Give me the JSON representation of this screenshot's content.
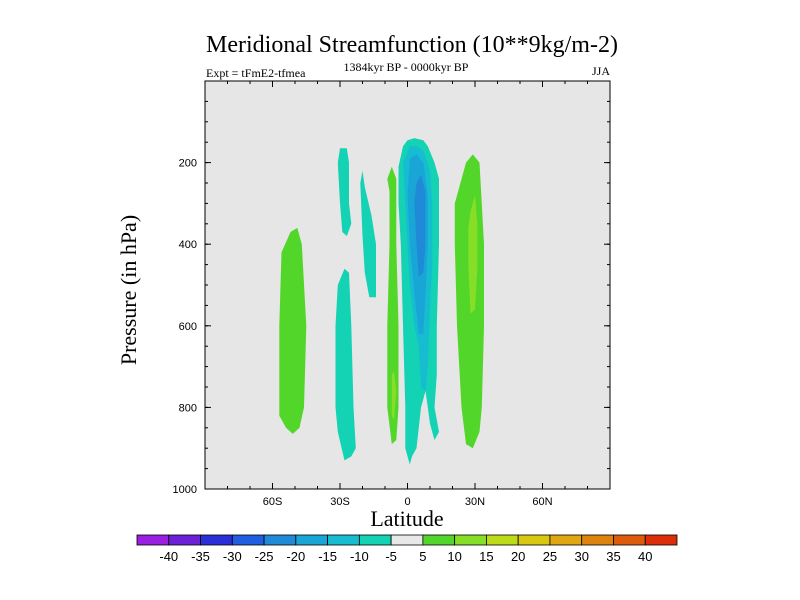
{
  "chart_data": {
    "type": "contour",
    "title": "Meridional Streamfunction (10**9kg/m-2)",
    "left_label": "Expt = tFmE2-tfmea",
    "center_label": "1384kyr BP - 0000kyr BP",
    "right_label": "JJA",
    "xlabel": "Latitude",
    "ylabel": "Pressure (in hPa)",
    "xlim": [
      -90,
      90
    ],
    "ylim": [
      1000,
      0
    ],
    "x_ticks": [
      {
        "value": -60,
        "label": "60S"
      },
      {
        "value": -30,
        "label": "30S"
      },
      {
        "value": 0,
        "label": "0"
      },
      {
        "value": 30,
        "label": "30N"
      },
      {
        "value": 60,
        "label": "60N"
      }
    ],
    "y_ticks": [
      {
        "value": 200,
        "label": "200"
      },
      {
        "value": 400,
        "label": "400"
      },
      {
        "value": 600,
        "label": "600"
      },
      {
        "value": 800,
        "label": "800"
      },
      {
        "value": 1000,
        "label": "1000"
      }
    ],
    "background_color": "#e6e6e6",
    "colorbar": {
      "levels": [
        "-40",
        "-35",
        "-30",
        "-25",
        "-20",
        "-15",
        "-10",
        "-5",
        "5",
        "10",
        "15",
        "20",
        "25",
        "30",
        "35",
        "40"
      ],
      "colors": [
        "#9a1fe0",
        "#6c21d8",
        "#2b2fd8",
        "#1f5ee0",
        "#1f8ad8",
        "#19a6d6",
        "#16bdd0",
        "#14d2b4",
        "#e8e8e8",
        "#52d62a",
        "#86de26",
        "#bedb19",
        "#d8c910",
        "#dfa810",
        "#de840e",
        "#dd5c0c",
        "#dc2e0a"
      ]
    },
    "regions": [
      {
        "name": "sh-outer-positive",
        "level": "5 to 10",
        "color": "#52d62a",
        "polygon": [
          [
            -54,
            850
          ],
          [
            -57,
            820
          ],
          [
            -57,
            600
          ],
          [
            -56,
            420
          ],
          [
            -52,
            370
          ],
          [
            -49,
            360
          ],
          [
            -47,
            400
          ],
          [
            -45,
            600
          ],
          [
            -46,
            800
          ],
          [
            -48,
            850
          ],
          [
            -51,
            865
          ]
        ]
      },
      {
        "name": "sh-negative-upper",
        "level": "-10 to -5",
        "color": "#14d2b4",
        "polygon": [
          [
            -30,
            165
          ],
          [
            -27,
            165
          ],
          [
            -26,
            200
          ],
          [
            -26,
            300
          ],
          [
            -25,
            350
          ],
          [
            -27,
            380
          ],
          [
            -29,
            370
          ],
          [
            -30,
            300
          ],
          [
            -31,
            200
          ]
        ]
      },
      {
        "name": "sh-negative-lower",
        "level": "-10 to -5",
        "color": "#14d2b4",
        "polygon": [
          [
            -31,
            860
          ],
          [
            -32,
            800
          ],
          [
            -32,
            600
          ],
          [
            -31,
            500
          ],
          [
            -28,
            460
          ],
          [
            -26,
            470
          ],
          [
            -25,
            600
          ],
          [
            -24,
            800
          ],
          [
            -23,
            900
          ],
          [
            -25,
            920
          ],
          [
            -28,
            930
          ]
        ]
      },
      {
        "name": "sh-negative-mid",
        "level": "-10 to -5",
        "color": "#14d2b4",
        "polygon": [
          [
            -21,
            250
          ],
          [
            -20,
            220
          ],
          [
            -19,
            260
          ],
          [
            -16,
            330
          ],
          [
            -14,
            400
          ],
          [
            -14,
            530
          ],
          [
            -17,
            530
          ],
          [
            -19,
            470
          ],
          [
            -20,
            380
          ]
        ]
      },
      {
        "name": "eq-positive-strip",
        "level": "5 to 10",
        "color": "#52d62a",
        "polygon": [
          [
            -8,
            270
          ],
          [
            -9,
            240
          ],
          [
            -7,
            210
          ],
          [
            -5,
            240
          ],
          [
            -5,
            400
          ],
          [
            -4,
            600
          ],
          [
            -4,
            800
          ],
          [
            -5,
            880
          ],
          [
            -7,
            890
          ],
          [
            -9,
            800
          ],
          [
            -9,
            600
          ],
          [
            -8,
            400
          ]
        ]
      },
      {
        "name": "eq-positive-core",
        "level": "10 to 15",
        "color": "#86de26",
        "polygon": [
          [
            -7,
            720
          ],
          [
            -6,
            710
          ],
          [
            -5,
            760
          ],
          [
            -6,
            830
          ],
          [
            -7,
            820
          ]
        ]
      },
      {
        "name": "main-negative-band",
        "level": "-10 to -5",
        "color": "#14d2b4",
        "polygon": [
          [
            -4,
            210
          ],
          [
            -2,
            160
          ],
          [
            0,
            145
          ],
          [
            3,
            140
          ],
          [
            7,
            145
          ],
          [
            9,
            160
          ],
          [
            12,
            200
          ],
          [
            14,
            240
          ],
          [
            14,
            400
          ],
          [
            13,
            600
          ],
          [
            13,
            720
          ],
          [
            12,
            800
          ],
          [
            14,
            860
          ],
          [
            12,
            880
          ],
          [
            10,
            840
          ],
          [
            9,
            800
          ],
          [
            8,
            760
          ],
          [
            6,
            800
          ],
          [
            4,
            900
          ],
          [
            2,
            920
          ],
          [
            1,
            940
          ],
          [
            -1,
            900
          ],
          [
            -1,
            800
          ],
          [
            -2,
            600
          ],
          [
            -3,
            400
          ],
          [
            -4,
            300
          ]
        ]
      },
      {
        "name": "main-negative-15",
        "level": "-15 to -10",
        "color": "#16bdd0",
        "polygon": [
          [
            -2,
            200
          ],
          [
            1,
            160
          ],
          [
            4,
            160
          ],
          [
            7,
            170
          ],
          [
            10,
            220
          ],
          [
            11,
            300
          ],
          [
            11,
            450
          ],
          [
            10,
            560
          ],
          [
            9,
            700
          ],
          [
            8,
            760
          ],
          [
            6,
            750
          ],
          [
            5,
            650
          ],
          [
            3,
            600
          ],
          [
            1,
            500
          ],
          [
            0,
            400
          ],
          [
            -1,
            300
          ]
        ]
      },
      {
        "name": "main-negative-20",
        "level": "-20 to -15",
        "color": "#19a6d6",
        "polygon": [
          [
            1,
            190
          ],
          [
            4,
            180
          ],
          [
            7,
            200
          ],
          [
            9,
            280
          ],
          [
            9,
            400
          ],
          [
            8,
            520
          ],
          [
            7,
            620
          ],
          [
            5,
            620
          ],
          [
            3,
            520
          ],
          [
            1,
            400
          ],
          [
            0,
            280
          ]
        ]
      },
      {
        "name": "main-negative-25",
        "level": "-25 to -20",
        "color": "#1f8ad8",
        "polygon": [
          [
            4,
            250
          ],
          [
            6,
            230
          ],
          [
            8,
            270
          ],
          [
            8,
            400
          ],
          [
            7,
            470
          ],
          [
            5,
            480
          ],
          [
            4,
            400
          ],
          [
            3,
            300
          ]
        ]
      },
      {
        "name": "nh-positive",
        "level": "5 to 10",
        "color": "#52d62a",
        "polygon": [
          [
            21,
            300
          ],
          [
            23,
            260
          ],
          [
            26,
            200
          ],
          [
            29,
            180
          ],
          [
            32,
            200
          ],
          [
            34,
            400
          ],
          [
            34,
            600
          ],
          [
            33,
            800
          ],
          [
            32,
            860
          ],
          [
            29,
            900
          ],
          [
            26,
            890
          ],
          [
            24,
            800
          ],
          [
            22,
            600
          ],
          [
            21,
            400
          ]
        ]
      },
      {
        "name": "nh-positive-core",
        "level": "10 to 15",
        "color": "#86de26",
        "polygon": [
          [
            28,
            320
          ],
          [
            30,
            280
          ],
          [
            31,
            350
          ],
          [
            31,
            460
          ],
          [
            30,
            560
          ],
          [
            28,
            570
          ],
          [
            27,
            450
          ],
          [
            27,
            360
          ]
        ]
      }
    ]
  }
}
